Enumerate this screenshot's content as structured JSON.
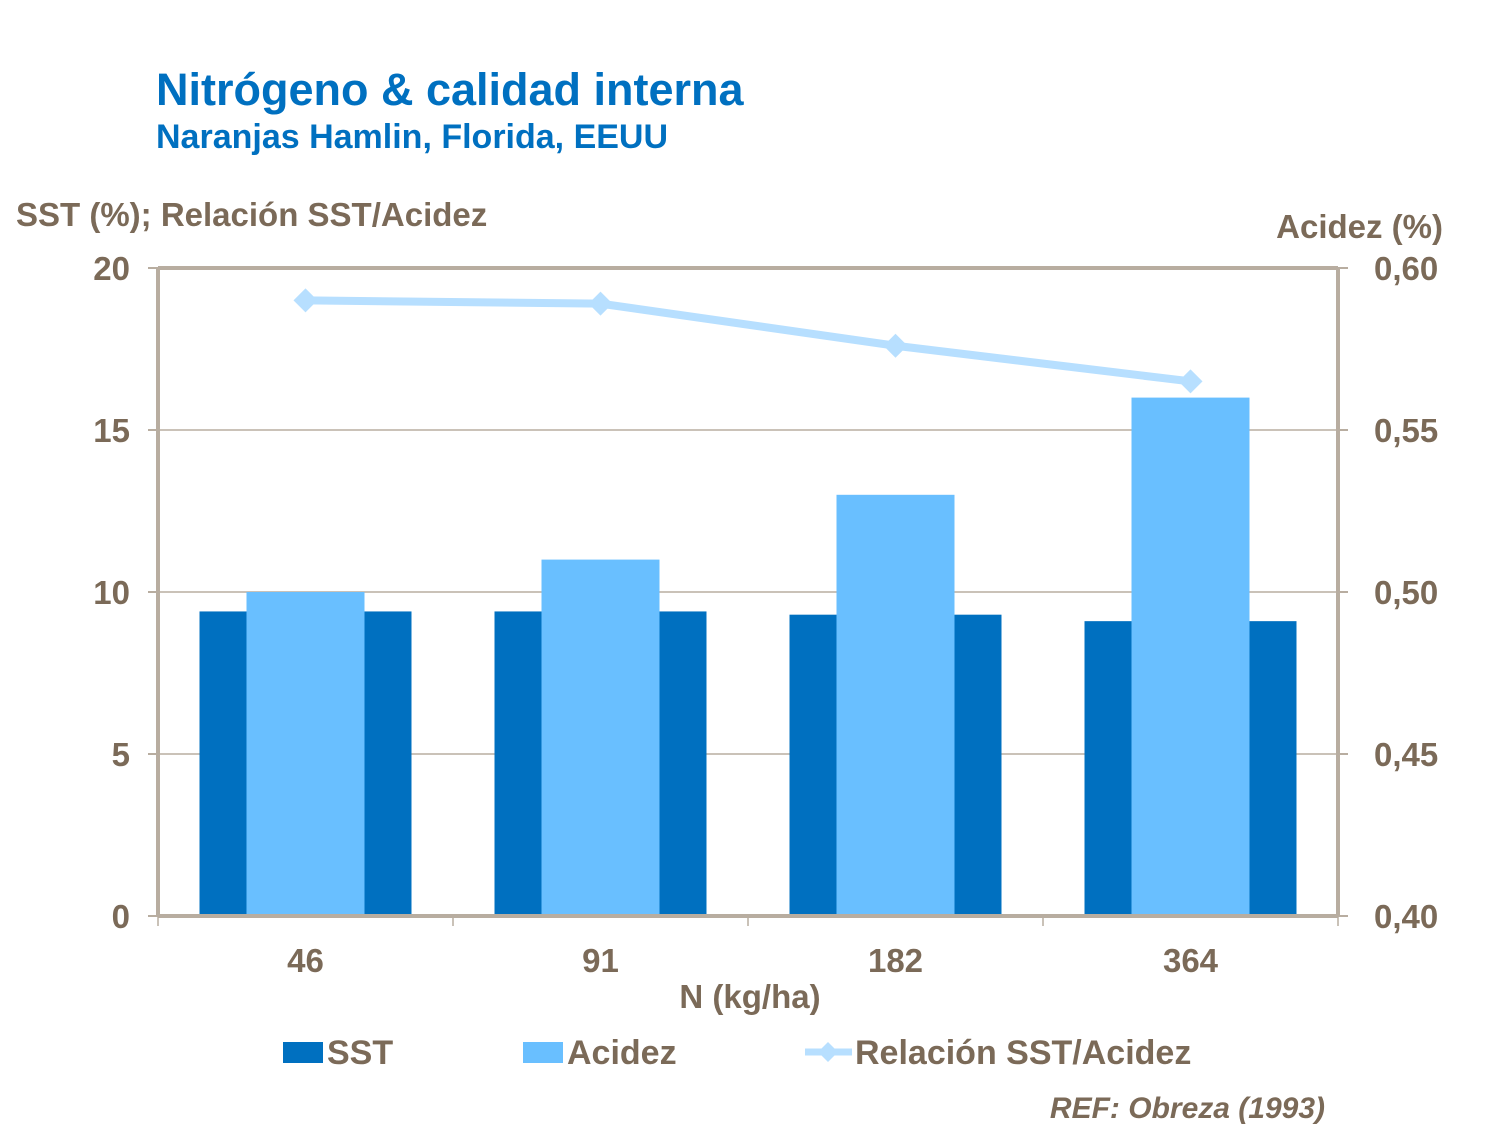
{
  "chart_data": {
    "type": "bar+line",
    "title": "Nitrógeno & calidad interna",
    "subtitle": "Naranjas Hamlin, Florida, EEUU",
    "xlabel": "N (kg/ha)",
    "ylabel_left": "SST (%); Relación SST/Acidez",
    "ylabel_right": "Acidez (%)",
    "categories": [
      "46",
      "91",
      "182",
      "364"
    ],
    "ylim_left": [
      0,
      20
    ],
    "yticks_left": [
      "0",
      "5",
      "10",
      "15",
      "20"
    ],
    "ylim_right": [
      0.4,
      0.6
    ],
    "yticks_right": [
      "0,40",
      "0,45",
      "0,50",
      "0,55",
      "0,60"
    ],
    "grid": true,
    "legend_position": "bottom",
    "series": [
      {
        "name": "SST",
        "type": "bar",
        "axis": "left",
        "color": "#0070C0",
        "values": [
          9.4,
          9.4,
          9.3,
          9.1
        ]
      },
      {
        "name": "Acidez",
        "type": "bar",
        "axis": "right",
        "color": "#69BFFF",
        "values": [
          0.5,
          0.51,
          0.53,
          0.56
        ]
      },
      {
        "name": "Relación SST/Acidez",
        "type": "line",
        "axis": "left",
        "color": "#B7DFFF",
        "values": [
          19.0,
          18.9,
          17.6,
          16.5
        ]
      }
    ],
    "reference": "REF: Obreza (1993)"
  }
}
